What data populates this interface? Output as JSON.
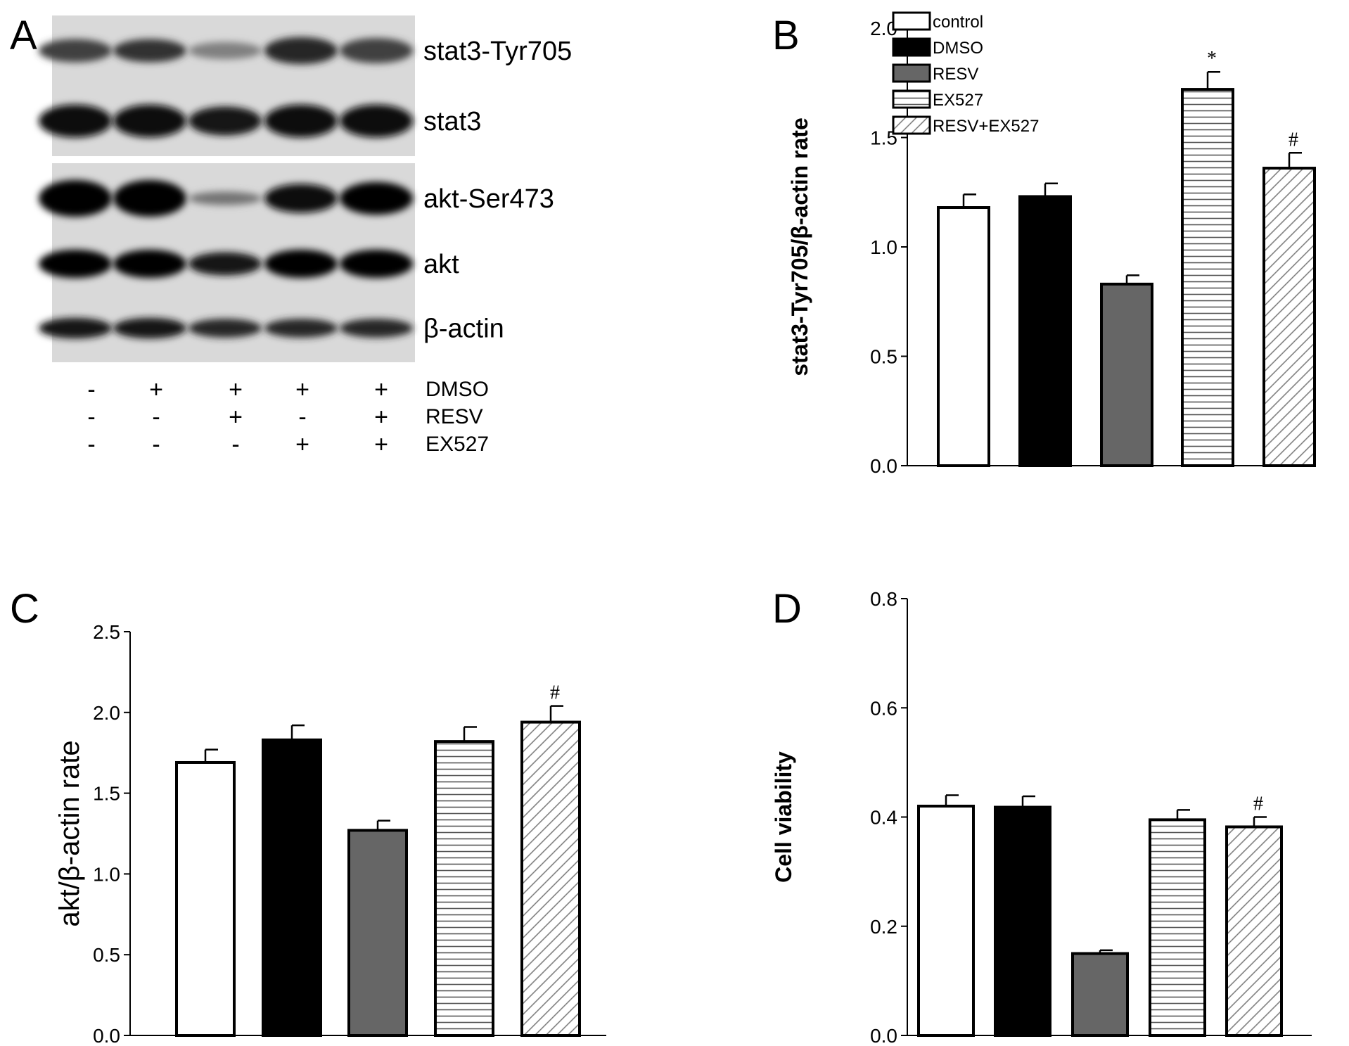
{
  "panels": {
    "A": {
      "letter": "A",
      "blots": [
        {
          "label": "stat3-Tyr705",
          "intensity": [
            0.75,
            0.8,
            0.5,
            0.85,
            0.75
          ],
          "thickness": [
            0.6,
            0.6,
            0.45,
            0.7,
            0.65
          ]
        },
        {
          "label": "stat3",
          "intensity": [
            0.95,
            0.95,
            0.9,
            0.95,
            0.95
          ],
          "thickness": [
            0.85,
            0.85,
            0.75,
            0.85,
            0.85
          ]
        },
        {
          "label": "akt-Ser473",
          "intensity": [
            1.0,
            1.0,
            0.55,
            0.95,
            0.98
          ],
          "thickness": [
            0.95,
            0.95,
            0.35,
            0.75,
            0.85
          ]
        },
        {
          "label": "akt",
          "intensity": [
            1.0,
            1.0,
            0.9,
            1.0,
            1.0
          ],
          "thickness": [
            0.85,
            0.85,
            0.7,
            0.85,
            0.85
          ]
        },
        {
          "label": "β-actin",
          "intensity": [
            0.9,
            0.9,
            0.85,
            0.85,
            0.85
          ],
          "thickness": [
            0.55,
            0.55,
            0.5,
            0.5,
            0.5
          ]
        }
      ],
      "treatments": [
        {
          "name": "DMSO",
          "signs": [
            "-",
            "+",
            "+",
            "+",
            "+"
          ]
        },
        {
          "name": "RESV",
          "signs": [
            "-",
            "-",
            "+",
            "-",
            "+"
          ]
        },
        {
          "name": "EX527",
          "signs": [
            "-",
            "-",
            "-",
            "+",
            "+"
          ]
        }
      ]
    },
    "B": {
      "letter": "B"
    },
    "C": {
      "letter": "C"
    },
    "D": {
      "letter": "D"
    }
  },
  "legend": [
    "control",
    "DMSO",
    "RESV",
    "EX527",
    "RESV+EX527"
  ],
  "chart_data": [
    {
      "panel": "B",
      "type": "bar",
      "categories": [
        "control",
        "DMSO",
        "RESV",
        "EX527",
        "RESV+EX527"
      ],
      "values": [
        1.18,
        1.23,
        0.83,
        1.72,
        1.36
      ],
      "errors": [
        0.06,
        0.06,
        0.04,
        0.08,
        0.07
      ],
      "annotations": [
        "",
        "",
        "",
        "*",
        "#"
      ],
      "ylabel": "stat3-Tyr705/β-actin rate",
      "ylim": [
        0,
        2.0
      ],
      "yticks": [
        0.0,
        0.5,
        1.0,
        1.5,
        2.0
      ],
      "ytick_labels": [
        "0.0",
        "0.5",
        "1.0",
        "1.5",
        "2.0"
      ],
      "legend_position": "top-left"
    },
    {
      "panel": "C",
      "type": "bar",
      "categories": [
        "control",
        "DMSO",
        "RESV",
        "EX527",
        "RESV+EX527"
      ],
      "values": [
        1.69,
        1.83,
        1.27,
        1.82,
        1.94
      ],
      "errors": [
        0.08,
        0.09,
        0.06,
        0.09,
        0.1
      ],
      "annotations": [
        "",
        "",
        "",
        "",
        "#"
      ],
      "ylabel": "akt/β-actin rate",
      "ylim": [
        0,
        2.5
      ],
      "yticks": [
        0.0,
        0.5,
        1.0,
        1.5,
        2.0,
        2.5
      ],
      "ytick_labels": [
        "0.0",
        "0.5",
        "1.0",
        "1.5",
        "2.0",
        "2.5"
      ]
    },
    {
      "panel": "D",
      "type": "bar",
      "categories": [
        "control",
        "DMSO",
        "RESV",
        "EX527",
        "RESV+EX527"
      ],
      "values": [
        0.42,
        0.418,
        0.15,
        0.395,
        0.382
      ],
      "errors": [
        0.02,
        0.02,
        0.006,
        0.018,
        0.018
      ],
      "annotations": [
        "",
        "",
        "",
        "",
        "#"
      ],
      "ylabel": "Cell viability",
      "ylim": [
        0,
        0.8
      ],
      "yticks": [
        0.0,
        0.2,
        0.4,
        0.6,
        0.8
      ],
      "ytick_labels": [
        "0.0",
        "0.2",
        "0.4",
        "0.6",
        "0.8"
      ]
    }
  ],
  "colors": {
    "control": "#ffffff",
    "DMSO": "#000000",
    "RESV": "#666666",
    "axis": "#000000"
  },
  "fills": [
    "white",
    "black",
    "gray",
    "horizontal-stripes",
    "diagonal-hatch"
  ]
}
